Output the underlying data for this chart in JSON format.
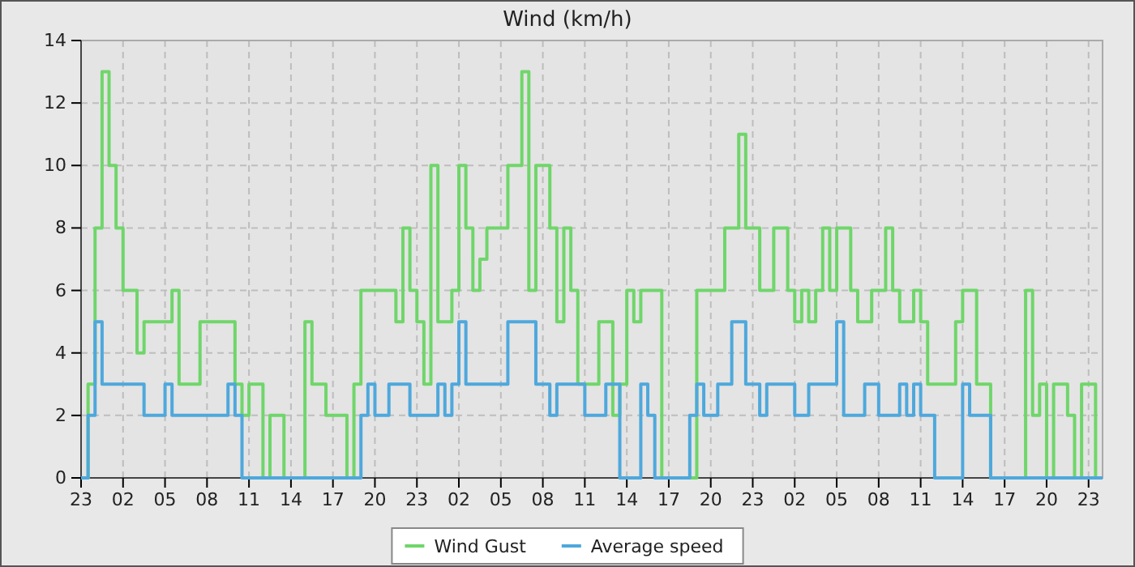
{
  "chart_data": {
    "type": "step",
    "title": "Wind (km/h)",
    "ylim": [
      0,
      14
    ],
    "categories": [
      "23",
      null,
      null,
      null,
      null,
      null,
      "02",
      null,
      null,
      null,
      null,
      null,
      "05",
      null,
      null,
      null,
      null,
      null,
      "08",
      null,
      null,
      null,
      null,
      null,
      "11",
      null,
      null,
      null,
      null,
      null,
      "14",
      null,
      null,
      null,
      null,
      null,
      "17",
      null,
      null,
      null,
      null,
      null,
      "20",
      null,
      null,
      null,
      null,
      null,
      "23",
      null,
      null,
      null,
      null,
      null,
      "02",
      null,
      null,
      null,
      null,
      null,
      "05",
      null,
      null,
      null,
      null,
      null,
      "08",
      null,
      null,
      null,
      null,
      null,
      "11",
      null,
      null,
      null,
      null,
      null,
      "14",
      null,
      null,
      null,
      null,
      null,
      "17",
      null,
      null,
      null,
      null,
      null,
      "20",
      null,
      null,
      null,
      null,
      null,
      "23",
      null,
      null,
      null,
      null,
      null,
      "02",
      null,
      null,
      null,
      null,
      null,
      "05",
      null,
      null,
      null,
      null,
      null,
      "08",
      null,
      null,
      null,
      null,
      null,
      "11",
      null,
      null,
      null,
      null,
      null,
      "14",
      null,
      null,
      null,
      null,
      null,
      "17",
      null,
      null,
      null,
      null,
      null,
      "20",
      null,
      null,
      null,
      null,
      null,
      "23",
      null,
      null
    ],
    "yticks": [
      0,
      2,
      4,
      6,
      8,
      10,
      12,
      14
    ],
    "grid": true,
    "legend": "bottom",
    "line_style": "solid",
    "series": [
      {
        "name": "Wind Gust",
        "color": "#6fd66a",
        "values": [
          0,
          3,
          8,
          13,
          10,
          8,
          6,
          6,
          4,
          5,
          5,
          5,
          5,
          6,
          3,
          3,
          3,
          5,
          5,
          5,
          5,
          5,
          3,
          2,
          3,
          3,
          0,
          2,
          2,
          0,
          0,
          0,
          5,
          3,
          3,
          2,
          2,
          2,
          0,
          3,
          6,
          6,
          6,
          6,
          6,
          5,
          8,
          6,
          5,
          3,
          10,
          5,
          5,
          6,
          10,
          8,
          6,
          7,
          8,
          8,
          8,
          10,
          10,
          13,
          6,
          10,
          10,
          8,
          5,
          8,
          6,
          3,
          3,
          3,
          5,
          5,
          2,
          3,
          6,
          5,
          6,
          6,
          6,
          0,
          0,
          0,
          0,
          0,
          6,
          6,
          6,
          6,
          8,
          8,
          11,
          8,
          8,
          6,
          6,
          8,
          8,
          6,
          5,
          6,
          5,
          6,
          8,
          6,
          8,
          8,
          6,
          5,
          5,
          6,
          6,
          8,
          6,
          5,
          5,
          6,
          5,
          3,
          3,
          3,
          3,
          5,
          6,
          6,
          3,
          3,
          0,
          0,
          0,
          0,
          0,
          6,
          2,
          3,
          0,
          3,
          3,
          2,
          0,
          3,
          3,
          0,
          0
        ]
      },
      {
        "name": "Average speed",
        "color": "#4ea8dc",
        "values": [
          0,
          2,
          5,
          3,
          3,
          3,
          3,
          3,
          3,
          2,
          2,
          2,
          3,
          2,
          2,
          2,
          2,
          2,
          2,
          2,
          2,
          3,
          2,
          0,
          0,
          0,
          0,
          0,
          0,
          0,
          0,
          0,
          0,
          0,
          0,
          0,
          0,
          0,
          0,
          0,
          2,
          3,
          2,
          2,
          3,
          3,
          3,
          2,
          2,
          2,
          2,
          3,
          2,
          3,
          5,
          3,
          3,
          3,
          3,
          3,
          3,
          5,
          5,
          5,
          5,
          3,
          3,
          2,
          3,
          3,
          3,
          3,
          2,
          2,
          2,
          3,
          3,
          0,
          0,
          0,
          3,
          2,
          0,
          0,
          0,
          0,
          0,
          2,
          3,
          2,
          2,
          3,
          3,
          5,
          5,
          3,
          3,
          2,
          3,
          3,
          3,
          3,
          2,
          2,
          3,
          3,
          3,
          3,
          5,
          2,
          2,
          2,
          3,
          3,
          2,
          2,
          2,
          3,
          2,
          3,
          2,
          2,
          0,
          0,
          0,
          0,
          3,
          2,
          2,
          2,
          0,
          0,
          0,
          0,
          0,
          0,
          0,
          0,
          0,
          0,
          0,
          0,
          0,
          0,
          0,
          0,
          0
        ]
      }
    ]
  }
}
